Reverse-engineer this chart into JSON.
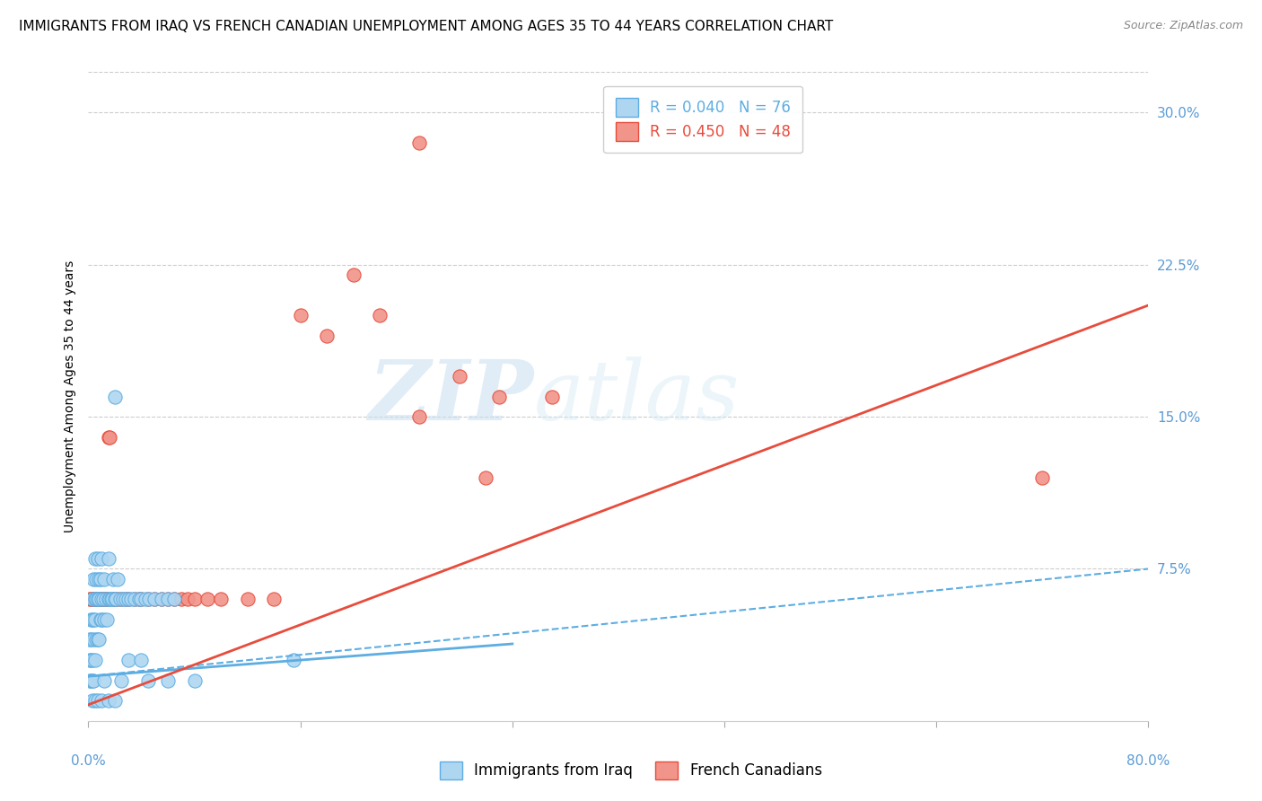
{
  "title": "IMMIGRANTS FROM IRAQ VS FRENCH CANADIAN UNEMPLOYMENT AMONG AGES 35 TO 44 YEARS CORRELATION CHART",
  "source": "Source: ZipAtlas.com",
  "ylabel": "Unemployment Among Ages 35 to 44 years",
  "xlim": [
    0,
    0.8
  ],
  "ylim": [
    0,
    0.32
  ],
  "yticks": [
    0.075,
    0.15,
    0.225,
    0.3
  ],
  "ytick_labels": [
    "7.5%",
    "15.0%",
    "22.5%",
    "30.0%"
  ],
  "xticks": [
    0.0,
    0.16,
    0.32,
    0.48,
    0.64,
    0.8
  ],
  "series1_label": "Immigrants from Iraq",
  "series1_R": "0.040",
  "series1_N": "76",
  "series1_color": "#aed6f1",
  "series1_edge_color": "#5dade2",
  "series2_label": "French Canadians",
  "series2_R": "0.450",
  "series2_N": "48",
  "series2_color": "#f1948a",
  "series2_edge_color": "#e74c3c",
  "watermark_zip": "ZIP",
  "watermark_atlas": "atlas",
  "background_color": "#ffffff",
  "title_fontsize": 11,
  "axis_label_fontsize": 10,
  "tick_label_fontsize": 11,
  "tick_color": "#5b9bd5",
  "line1_x0": 0.0,
  "line1_x1": 0.32,
  "line1_y0": 0.02,
  "line1_y1": 0.035,
  "line1_dash_x0": 0.0,
  "line1_dash_x1": 0.8,
  "line1_dash_y0": 0.025,
  "line1_dash_y1": 0.075,
  "line2_x0": 0.0,
  "line2_x1": 0.8,
  "line2_y0": 0.01,
  "line2_y1": 0.2,
  "scatter1_x": [
    0.001,
    0.001,
    0.001,
    0.002,
    0.002,
    0.002,
    0.002,
    0.003,
    0.003,
    0.003,
    0.003,
    0.004,
    0.004,
    0.004,
    0.004,
    0.005,
    0.005,
    0.005,
    0.005,
    0.006,
    0.006,
    0.006,
    0.007,
    0.007,
    0.007,
    0.008,
    0.008,
    0.008,
    0.009,
    0.009,
    0.01,
    0.01,
    0.01,
    0.011,
    0.012,
    0.012,
    0.013,
    0.014,
    0.015,
    0.015,
    0.016,
    0.017,
    0.018,
    0.019,
    0.02,
    0.021,
    0.022,
    0.024,
    0.026,
    0.028,
    0.03,
    0.032,
    0.035,
    0.038,
    0.04,
    0.043,
    0.046,
    0.05,
    0.055,
    0.06,
    0.065,
    0.003,
    0.005,
    0.007,
    0.01,
    0.015,
    0.02,
    0.03,
    0.04,
    0.02,
    0.155,
    0.08,
    0.06,
    0.045,
    0.025,
    0.012
  ],
  "scatter1_y": [
    0.02,
    0.03,
    0.04,
    0.02,
    0.03,
    0.04,
    0.05,
    0.02,
    0.03,
    0.05,
    0.06,
    0.02,
    0.04,
    0.05,
    0.07,
    0.03,
    0.05,
    0.06,
    0.08,
    0.04,
    0.06,
    0.07,
    0.04,
    0.06,
    0.08,
    0.04,
    0.06,
    0.07,
    0.05,
    0.07,
    0.05,
    0.06,
    0.08,
    0.06,
    0.05,
    0.07,
    0.06,
    0.05,
    0.06,
    0.08,
    0.06,
    0.06,
    0.06,
    0.07,
    0.06,
    0.06,
    0.07,
    0.06,
    0.06,
    0.06,
    0.06,
    0.06,
    0.06,
    0.06,
    0.06,
    0.06,
    0.06,
    0.06,
    0.06,
    0.06,
    0.06,
    0.01,
    0.01,
    0.01,
    0.01,
    0.01,
    0.01,
    0.03,
    0.03,
    0.16,
    0.03,
    0.02,
    0.02,
    0.02,
    0.02,
    0.02
  ],
  "scatter2_x": [
    0.001,
    0.002,
    0.003,
    0.004,
    0.005,
    0.006,
    0.007,
    0.008,
    0.009,
    0.01,
    0.011,
    0.012,
    0.013,
    0.014,
    0.015,
    0.016,
    0.018,
    0.02,
    0.022,
    0.025,
    0.028,
    0.03,
    0.035,
    0.038,
    0.04,
    0.045,
    0.05,
    0.055,
    0.06,
    0.065,
    0.07,
    0.075,
    0.08,
    0.09,
    0.1,
    0.12,
    0.14,
    0.16,
    0.18,
    0.2,
    0.22,
    0.25,
    0.28,
    0.31,
    0.35,
    0.72,
    0.25,
    0.3
  ],
  "scatter2_y": [
    0.06,
    0.06,
    0.06,
    0.06,
    0.06,
    0.06,
    0.06,
    0.06,
    0.06,
    0.06,
    0.06,
    0.06,
    0.06,
    0.06,
    0.14,
    0.14,
    0.06,
    0.06,
    0.06,
    0.06,
    0.06,
    0.06,
    0.06,
    0.06,
    0.06,
    0.06,
    0.06,
    0.06,
    0.06,
    0.06,
    0.06,
    0.06,
    0.06,
    0.06,
    0.06,
    0.06,
    0.06,
    0.2,
    0.19,
    0.22,
    0.2,
    0.15,
    0.17,
    0.16,
    0.16,
    0.12,
    0.285,
    0.12
  ]
}
